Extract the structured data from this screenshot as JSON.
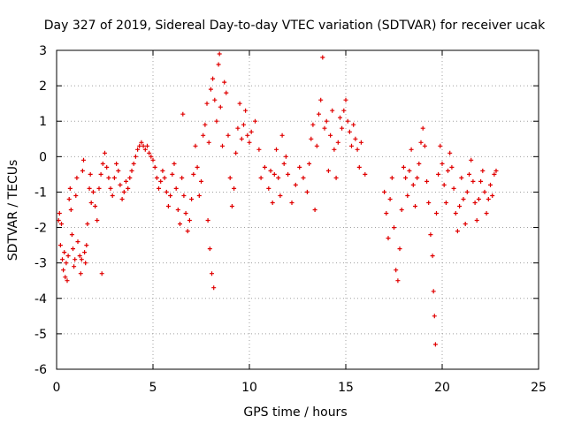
{
  "chart_data": {
    "type": "scatter",
    "title": "Day 327 of 2019, Sidereal Day-to-day VTEC variation (SDTVAR) for receiver ucak",
    "xlabel": "GPS time / hours",
    "ylabel": "SDTVAR / TECUs",
    "xlim": [
      0,
      25
    ],
    "ylim": [
      -6,
      3
    ],
    "xticks": [
      0,
      5,
      10,
      15,
      20,
      25
    ],
    "yticks": [
      -6,
      -5,
      -4,
      -3,
      -2,
      -1,
      0,
      1,
      2,
      3
    ],
    "grid": true,
    "marker": "plus",
    "color": "#e00000",
    "series": [
      {
        "name": "SDTVAR",
        "points": [
          [
            0.1,
            -1.8
          ],
          [
            0.15,
            -1.6
          ],
          [
            0.2,
            -2.5
          ],
          [
            0.25,
            -1.9
          ],
          [
            0.3,
            -2.9
          ],
          [
            0.35,
            -3.2
          ],
          [
            0.4,
            -2.7
          ],
          [
            0.45,
            -3.4
          ],
          [
            0.5,
            -3.0
          ],
          [
            0.55,
            -3.5
          ],
          [
            0.6,
            -2.8
          ],
          [
            0.65,
            -1.2
          ],
          [
            0.7,
            -0.9
          ],
          [
            0.75,
            -1.5
          ],
          [
            0.8,
            -2.2
          ],
          [
            0.85,
            -2.6
          ],
          [
            0.9,
            -3.1
          ],
          [
            0.95,
            -2.9
          ],
          [
            1.0,
            -1.1
          ],
          [
            1.05,
            -0.6
          ],
          [
            1.1,
            -2.4
          ],
          [
            1.2,
            -2.8
          ],
          [
            1.25,
            -3.3
          ],
          [
            1.3,
            -2.9
          ],
          [
            1.35,
            -0.4
          ],
          [
            1.4,
            -0.1
          ],
          [
            1.45,
            -2.7
          ],
          [
            1.5,
            -3.0
          ],
          [
            1.55,
            -2.5
          ],
          [
            1.6,
            -1.9
          ],
          [
            1.7,
            -0.9
          ],
          [
            1.75,
            -0.5
          ],
          [
            1.8,
            -1.3
          ],
          [
            1.9,
            -1.0
          ],
          [
            2.0,
            -1.4
          ],
          [
            2.1,
            -1.8
          ],
          [
            2.2,
            -0.9
          ],
          [
            2.3,
            -0.5
          ],
          [
            2.35,
            -3.3
          ],
          [
            2.4,
            -0.2
          ],
          [
            2.5,
            0.1
          ],
          [
            2.6,
            -0.3
          ],
          [
            2.7,
            -0.6
          ],
          [
            2.8,
            -0.9
          ],
          [
            2.9,
            -1.1
          ],
          [
            3.0,
            -0.6
          ],
          [
            3.1,
            -0.2
          ],
          [
            3.2,
            -0.4
          ],
          [
            3.3,
            -0.8
          ],
          [
            3.4,
            -1.2
          ],
          [
            3.5,
            -1.0
          ],
          [
            3.6,
            -0.7
          ],
          [
            3.7,
            -0.9
          ],
          [
            3.8,
            -0.6
          ],
          [
            3.9,
            -0.4
          ],
          [
            4.0,
            -0.2
          ],
          [
            4.1,
            0.0
          ],
          [
            4.2,
            0.2
          ],
          [
            4.3,
            0.3
          ],
          [
            4.4,
            0.4
          ],
          [
            4.5,
            0.3
          ],
          [
            4.6,
            0.2
          ],
          [
            4.7,
            0.3
          ],
          [
            4.8,
            0.1
          ],
          [
            4.9,
            0.0
          ],
          [
            5.0,
            -0.1
          ],
          [
            5.1,
            -0.3
          ],
          [
            5.2,
            -0.6
          ],
          [
            5.3,
            -0.9
          ],
          [
            5.4,
            -0.7
          ],
          [
            5.5,
            -0.4
          ],
          [
            5.6,
            -0.6
          ],
          [
            5.7,
            -1.0
          ],
          [
            5.8,
            -1.4
          ],
          [
            5.9,
            -1.1
          ],
          [
            6.0,
            -0.5
          ],
          [
            6.1,
            -0.2
          ],
          [
            6.2,
            -0.9
          ],
          [
            6.3,
            -1.5
          ],
          [
            6.4,
            -1.9
          ],
          [
            6.5,
            -0.6
          ],
          [
            6.55,
            1.2
          ],
          [
            6.6,
            -1.1
          ],
          [
            6.7,
            -1.6
          ],
          [
            6.8,
            -2.1
          ],
          [
            6.9,
            -1.8
          ],
          [
            7.0,
            -1.2
          ],
          [
            7.1,
            -0.5
          ],
          [
            7.2,
            0.3
          ],
          [
            7.3,
            -0.3
          ],
          [
            7.4,
            -1.1
          ],
          [
            7.5,
            -0.7
          ],
          [
            7.6,
            0.6
          ],
          [
            7.7,
            0.9
          ],
          [
            7.8,
            1.5
          ],
          [
            7.85,
            -1.8
          ],
          [
            7.9,
            0.4
          ],
          [
            7.95,
            -2.6
          ],
          [
            8.0,
            1.9
          ],
          [
            8.05,
            -3.3
          ],
          [
            8.1,
            2.2
          ],
          [
            8.15,
            -3.7
          ],
          [
            8.2,
            1.6
          ],
          [
            8.3,
            1.0
          ],
          [
            8.4,
            2.6
          ],
          [
            8.45,
            2.9
          ],
          [
            8.5,
            1.4
          ],
          [
            8.6,
            0.3
          ],
          [
            8.7,
            2.1
          ],
          [
            8.8,
            1.8
          ],
          [
            8.9,
            0.6
          ],
          [
            9.0,
            -0.6
          ],
          [
            9.1,
            -1.4
          ],
          [
            9.2,
            -0.9
          ],
          [
            9.3,
            0.1
          ],
          [
            9.4,
            0.8
          ],
          [
            9.5,
            1.5
          ],
          [
            9.6,
            0.5
          ],
          [
            9.7,
            0.9
          ],
          [
            9.8,
            1.3
          ],
          [
            9.9,
            0.6
          ],
          [
            10.0,
            0.4
          ],
          [
            10.1,
            0.7
          ],
          [
            10.3,
            1.0
          ],
          [
            10.5,
            0.2
          ],
          [
            10.6,
            -0.6
          ],
          [
            10.8,
            -0.3
          ],
          [
            11.0,
            -0.9
          ],
          [
            11.1,
            -0.4
          ],
          [
            11.2,
            -1.3
          ],
          [
            11.3,
            -0.5
          ],
          [
            11.4,
            0.2
          ],
          [
            11.5,
            -0.6
          ],
          [
            11.6,
            -1.1
          ],
          [
            11.7,
            0.6
          ],
          [
            11.8,
            -0.2
          ],
          [
            11.9,
            0.0
          ],
          [
            12.0,
            -0.5
          ],
          [
            12.2,
            -1.3
          ],
          [
            12.4,
            -0.8
          ],
          [
            12.6,
            -0.3
          ],
          [
            12.8,
            -0.6
          ],
          [
            13.0,
            -1.0
          ],
          [
            13.1,
            -0.2
          ],
          [
            13.2,
            0.5
          ],
          [
            13.3,
            0.9
          ],
          [
            13.4,
            -1.5
          ],
          [
            13.5,
            0.3
          ],
          [
            13.6,
            1.2
          ],
          [
            13.7,
            1.6
          ],
          [
            13.8,
            2.8
          ],
          [
            13.9,
            0.8
          ],
          [
            14.0,
            1.0
          ],
          [
            14.1,
            -0.4
          ],
          [
            14.2,
            0.6
          ],
          [
            14.3,
            1.3
          ],
          [
            14.4,
            0.2
          ],
          [
            14.5,
            -0.6
          ],
          [
            14.6,
            0.4
          ],
          [
            14.7,
            1.1
          ],
          [
            14.8,
            0.8
          ],
          [
            14.9,
            1.3
          ],
          [
            15.0,
            1.6
          ],
          [
            15.1,
            1.0
          ],
          [
            15.2,
            0.7
          ],
          [
            15.3,
            0.3
          ],
          [
            15.4,
            0.9
          ],
          [
            15.5,
            0.5
          ],
          [
            15.6,
            0.2
          ],
          [
            15.7,
            -0.3
          ],
          [
            15.8,
            0.4
          ],
          [
            16.0,
            -0.5
          ],
          [
            17.0,
            -1.0
          ],
          [
            17.1,
            -1.6
          ],
          [
            17.2,
            -2.3
          ],
          [
            17.3,
            -1.2
          ],
          [
            17.4,
            -0.6
          ],
          [
            17.5,
            -2.0
          ],
          [
            17.6,
            -3.2
          ],
          [
            17.7,
            -3.5
          ],
          [
            17.8,
            -2.6
          ],
          [
            17.9,
            -1.5
          ],
          [
            18.0,
            -0.3
          ],
          [
            18.1,
            -0.6
          ],
          [
            18.2,
            -1.1
          ],
          [
            18.3,
            -0.4
          ],
          [
            18.4,
            0.2
          ],
          [
            18.5,
            -0.8
          ],
          [
            18.6,
            -1.4
          ],
          [
            18.7,
            -0.6
          ],
          [
            18.8,
            -0.2
          ],
          [
            18.9,
            0.4
          ],
          [
            19.0,
            0.8
          ],
          [
            19.1,
            0.3
          ],
          [
            19.2,
            -0.7
          ],
          [
            19.3,
            -1.3
          ],
          [
            19.4,
            -2.2
          ],
          [
            19.5,
            -2.8
          ],
          [
            19.55,
            -3.8
          ],
          [
            19.6,
            -4.5
          ],
          [
            19.65,
            -5.3
          ],
          [
            19.7,
            -1.6
          ],
          [
            19.8,
            -0.5
          ],
          [
            19.9,
            0.3
          ],
          [
            20.0,
            -0.2
          ],
          [
            20.1,
            -0.8
          ],
          [
            20.2,
            -1.3
          ],
          [
            20.3,
            -0.4
          ],
          [
            20.4,
            0.1
          ],
          [
            20.5,
            -0.3
          ],
          [
            20.6,
            -0.9
          ],
          [
            20.7,
            -1.6
          ],
          [
            20.8,
            -2.1
          ],
          [
            20.9,
            -1.4
          ],
          [
            21.0,
            -0.6
          ],
          [
            21.1,
            -1.2
          ],
          [
            21.2,
            -1.9
          ],
          [
            21.3,
            -1.0
          ],
          [
            21.4,
            -0.5
          ],
          [
            21.5,
            -0.1
          ],
          [
            21.6,
            -0.7
          ],
          [
            21.7,
            -1.3
          ],
          [
            21.8,
            -1.8
          ],
          [
            21.9,
            -1.2
          ],
          [
            22.0,
            -0.7
          ],
          [
            22.1,
            -0.4
          ],
          [
            22.2,
            -1.0
          ],
          [
            22.3,
            -1.6
          ],
          [
            22.4,
            -1.2
          ],
          [
            22.5,
            -0.8
          ],
          [
            22.6,
            -1.1
          ],
          [
            22.7,
            -0.5
          ],
          [
            22.8,
            -0.4
          ]
        ]
      }
    ]
  }
}
